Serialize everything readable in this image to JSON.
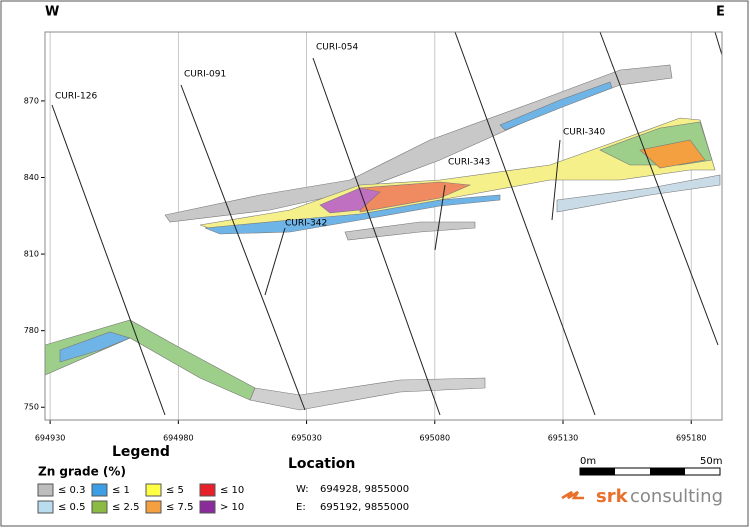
{
  "header": {
    "west": "W",
    "east": "E"
  },
  "section": {
    "xlim": [
      694928,
      695192
    ],
    "ylim": [
      745,
      897
    ],
    "xticks": [
      694930,
      694980,
      695030,
      695080,
      695130,
      695180
    ],
    "yticks": [
      750,
      780,
      810,
      840,
      870
    ],
    "grid": true,
    "drillholes": [
      "CURI-126",
      "CURI-091",
      "CURI-054",
      "CURI-342",
      "CURI-343",
      "CURI-340"
    ]
  },
  "legend": {
    "title": "Legend",
    "subtitle": "Zn grade (%)",
    "items": [
      {
        "label": "≤ 0.3",
        "color": "#bdbdbd"
      },
      {
        "label": "≤ 1",
        "color": "#3d9ee8"
      },
      {
        "label": "≤ 5",
        "color": "#ffff44"
      },
      {
        "label": "≤ 10",
        "color": "#e8202a"
      },
      {
        "label": "≤ 0.5",
        "color": "#b9dcee"
      },
      {
        "label": "≤ 2.5",
        "color": "#8cbb44"
      },
      {
        "label": "≤ 7.5",
        "color": "#f5a040"
      },
      {
        "label": "> 10",
        "color": "#8b2a9a"
      }
    ]
  },
  "location": {
    "title": "Location",
    "w_label": "W:",
    "w_value": "694928, 9855000",
    "e_label": "E:",
    "e_value": "695192, 9855000"
  },
  "scale": {
    "start": "0m",
    "end": "50m"
  },
  "logo": {
    "brand": "srk",
    "text": "consulting"
  }
}
